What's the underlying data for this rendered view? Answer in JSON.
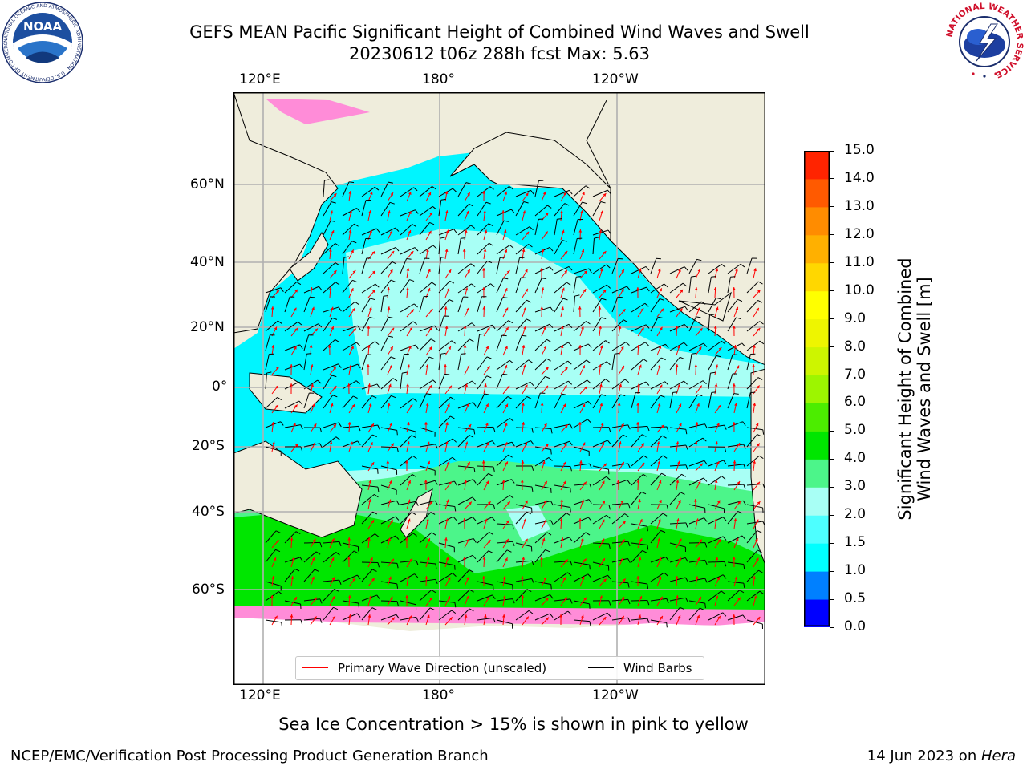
{
  "title": {
    "line1": "GEFS MEAN Pacific Significant Height of Combined Wind Waves and Swell",
    "line2": "20230612 t06z 288h fcst   Max: 5.63"
  },
  "map": {
    "top_ticks": [
      "120°E",
      "180°",
      "120°W"
    ],
    "bottom_ticks": [
      "120°E",
      "180°",
      "120°W"
    ],
    "lat_ticks": [
      "60°N",
      "40°N",
      "20°N",
      "0°",
      "20°S",
      "40°S",
      "60°S"
    ],
    "legend": {
      "wave_label": "Primary Wave Direction (unscaled)",
      "wind_label": "Wind Barbs",
      "wave_color": "#ff0000",
      "wind_color": "#000000"
    },
    "colors": {
      "land": "#efeddc",
      "ocean_low": "#00ffff",
      "ocean_mid": "#a8fff5",
      "ocean_south": "#4cf58a",
      "ocean_high": "#00e600",
      "ice": "#ff55ff"
    }
  },
  "colorbar": {
    "label_line1": "Significant Height of Combined",
    "label_line2": "Wind Waves and Swell [m]",
    "ticks": [
      "0.0",
      "0.5",
      "1.0",
      "1.5",
      "2.0",
      "3.0",
      "4.0",
      "5.0",
      "6.0",
      "7.0",
      "8.0",
      "9.0",
      "10.0",
      "11.0",
      "12.0",
      "13.0",
      "14.0",
      "15.0"
    ],
    "colors": [
      "#0000ff",
      "#0080ff",
      "#00ffff",
      "#4dffff",
      "#a8fff5",
      "#4cf58a",
      "#00e600",
      "#4ced00",
      "#9df500",
      "#cdf500",
      "#eef500",
      "#ffff00",
      "#ffd700",
      "#ffb000",
      "#ff8c00",
      "#ff5a00",
      "#ff2400",
      "#ff0000"
    ]
  },
  "sea_ice_note": "Sea Ice Concentration > 15% is shown in pink to yellow",
  "footer": {
    "left": "NCEP/EMC/Verification Post Processing Product Generation Branch",
    "right_prefix": "14 Jun 2023 on ",
    "right_host": "Hera"
  },
  "logos": {
    "noaa_text": "NOAA",
    "noaa_ring": "NATIONAL OCEANIC AND ATMOSPHERIC ADMINISTRATION · U.S. DEPARTMENT OF COMMERCE",
    "nws_ring": "NATIONAL WEATHER SERVICE"
  }
}
